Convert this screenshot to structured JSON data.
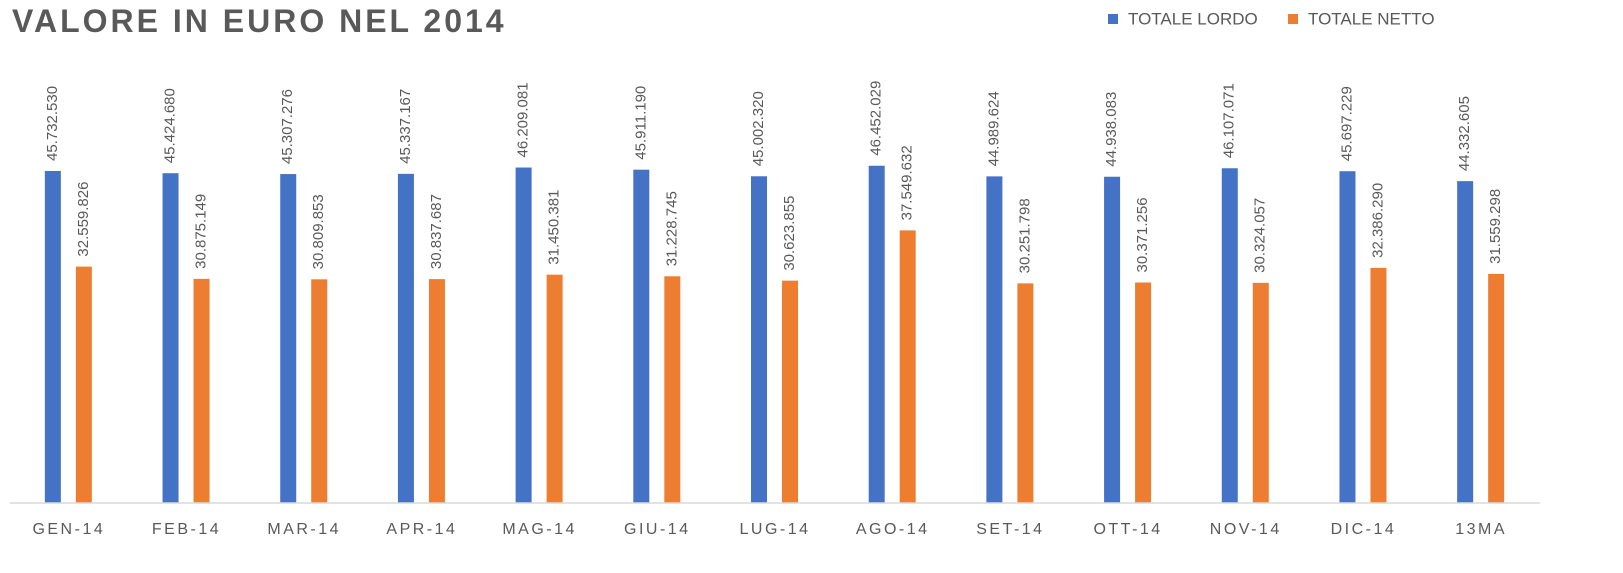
{
  "chart_data": {
    "type": "bar",
    "title": "VALORE IN EURO NEL 2014",
    "categories": [
      "GEN-14",
      "FEB-14",
      "MAR-14",
      "APR-14",
      "MAG-14",
      "GIU-14",
      "LUG-14",
      "AGO-14",
      "SET-14",
      "OTT-14",
      "NOV-14",
      "DIC-14",
      "13MA"
    ],
    "series": [
      {
        "name": "TOTALE LORDO",
        "color": "#4472c4",
        "values": [
          45732530,
          45424680,
          45307276,
          45337167,
          46209081,
          45911190,
          45002320,
          46452029,
          44989624,
          44938083,
          46107071,
          45697229,
          44332605
        ],
        "value_labels": [
          "45.732.530",
          "45.424.680",
          "45.307.276",
          "45.337.167",
          "46.209.081",
          "45.911.190",
          "45.002.320",
          "46.452.029",
          "44.989.624",
          "44.938.083",
          "46.107.071",
          "45.697.229",
          "44.332.605"
        ]
      },
      {
        "name": "TOTALE NETTO",
        "color": "#ed7d31",
        "values": [
          32559826,
          30875149,
          30809853,
          30837687,
          31450381,
          31228745,
          30623855,
          37549632,
          30251798,
          30371256,
          30324057,
          32386290,
          31559298
        ],
        "value_labels": [
          "32.559.826",
          "30.875.149",
          "30.809.853",
          "30.837.687",
          "31.450.381",
          "31.228.745",
          "30.623.855",
          "37.549.632",
          "30.251.798",
          "30.371.256",
          "30.324.057",
          "32.386.290",
          "31.559.298"
        ]
      }
    ],
    "ylim": [
      0,
      50000000
    ],
    "legend": "top-right"
  }
}
